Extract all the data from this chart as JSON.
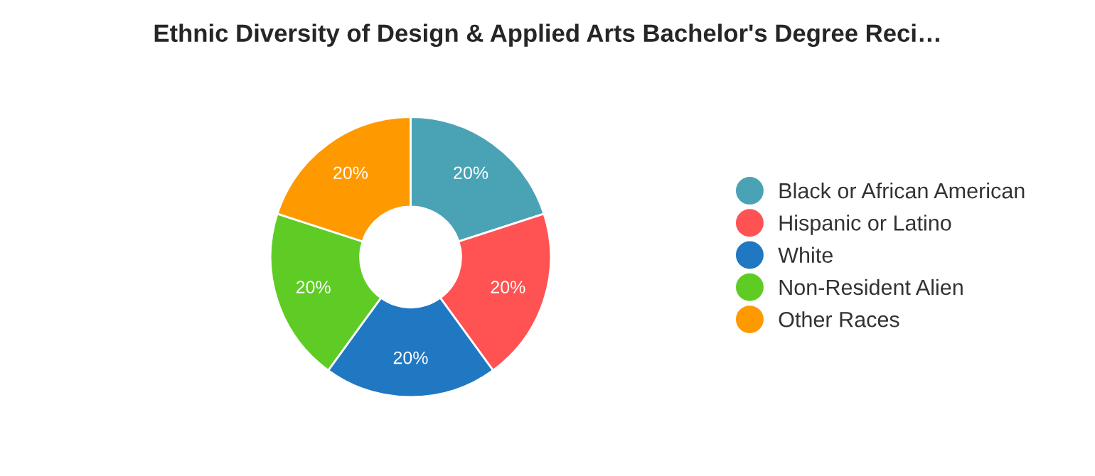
{
  "chart_data": {
    "type": "donut",
    "title": "Ethnic Diversity of Design & Applied Arts Bachelor's Degree Reci…",
    "categories": [
      "Black or African American",
      "Hispanic or Latino",
      "White",
      "Non-Resident Alien",
      "Other Races"
    ],
    "values": [
      20,
      20,
      20,
      20,
      20
    ],
    "value_labels": [
      "20%",
      "20%",
      "20%",
      "20%",
      "20%"
    ],
    "colors": [
      "#4aa3b5",
      "#ff5252",
      "#1f78c1",
      "#5fcc25",
      "#ff9900"
    ],
    "legend": "right"
  }
}
